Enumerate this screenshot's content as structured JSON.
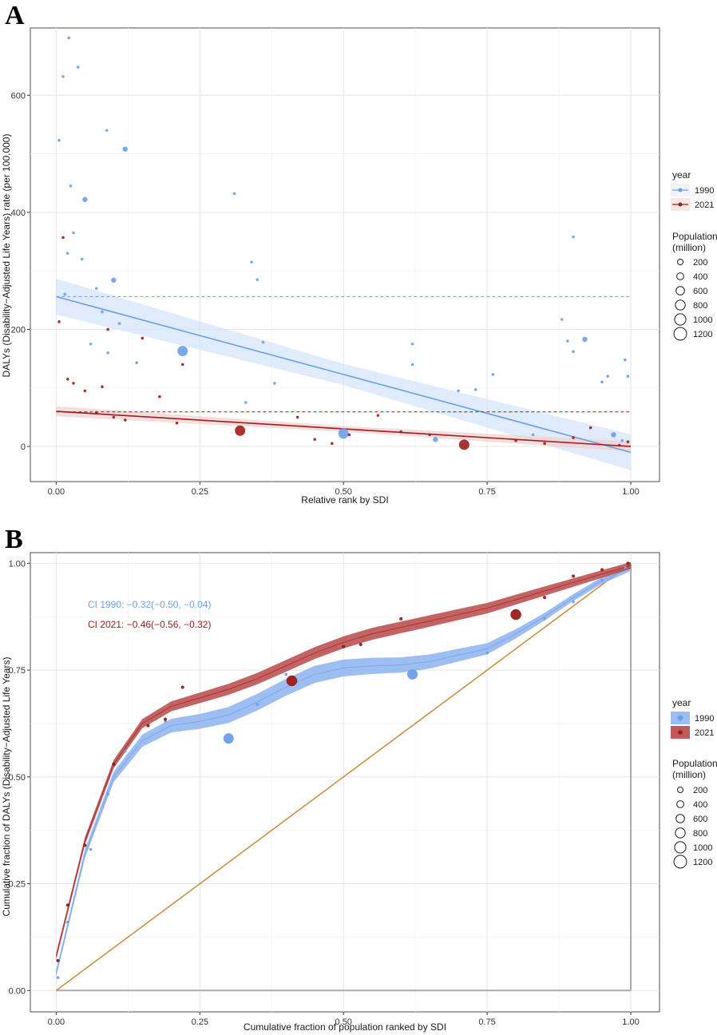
{
  "colors": {
    "c1990": "#6C9FE8",
    "c2021": "#A01C1C",
    "equality": "#C98A3A",
    "grid": "#E5E5E5",
    "frame": "#4D4D4D"
  },
  "chart_data": [
    {
      "panel": "A",
      "type": "scatter",
      "xlabel": "Relative rank by SDI",
      "ylabel": "DALYs (Disability−Adjusted Life Years) rate (per 100,000)",
      "xlim": [
        -0.045,
        1.05
      ],
      "ylim": [
        -60,
        715
      ],
      "xticks": [
        0,
        0.25,
        0.5,
        0.75,
        1.0
      ],
      "xtick_labels": [
        "0.00",
        "0.25",
        "0.50",
        "0.75",
        "1.00"
      ],
      "yticks": [
        0,
        200,
        400,
        600
      ],
      "ytick_labels": [
        "0",
        "200",
        "400",
        "600"
      ],
      "legend": {
        "year_title": "year",
        "years": [
          "1990",
          "2021"
        ],
        "size_title_1": "Population",
        "size_title_2": "(million)",
        "sizes": [
          "200",
          "400",
          "600",
          "800",
          "1000",
          "1200"
        ]
      },
      "series": [
        {
          "name": "1990",
          "regression": {
            "x": [
              0,
              1
            ],
            "y": [
              256,
              -10
            ]
          },
          "mean_line": 256,
          "points": [
            [
              0.005,
              523,
              1
            ],
            [
              0.012,
              632,
              1
            ],
            [
              0.022,
              698,
              1
            ],
            [
              0.038,
              648,
              1
            ],
            [
              0.05,
              422,
              2
            ],
            [
              0.088,
              540,
              1
            ],
            [
              0.12,
              508,
              2
            ],
            [
              0.025,
              445,
              1
            ],
            [
              0.03,
              365,
              1
            ],
            [
              0.02,
              330,
              1
            ],
            [
              0.045,
              320,
              1
            ],
            [
              0.07,
              270,
              1
            ],
            [
              0.1,
              284,
              2
            ],
            [
              0.08,
              230,
              1
            ],
            [
              0.09,
              160,
              1
            ],
            [
              0.14,
              143,
              1
            ],
            [
              0.22,
              163,
              3
            ],
            [
              0.31,
              432,
              1
            ],
            [
              0.34,
              315,
              1
            ],
            [
              0.35,
              285,
              1
            ],
            [
              0.36,
              178,
              1
            ],
            [
              0.38,
              108,
              1
            ],
            [
              0.33,
              75,
              1
            ],
            [
              0.5,
              22,
              3
            ],
            [
              0.62,
              175,
              1
            ],
            [
              0.62,
              140,
              1
            ],
            [
              0.7,
              95,
              1
            ],
            [
              0.73,
              97,
              1
            ],
            [
              0.76,
              123,
              1
            ],
            [
              0.66,
              12,
              2
            ],
            [
              0.83,
              20,
              1
            ],
            [
              0.88,
              217,
              1
            ],
            [
              0.89,
              180,
              1
            ],
            [
              0.9,
              162,
              1
            ],
            [
              0.92,
              183,
              2
            ],
            [
              0.9,
              358,
              1
            ],
            [
              0.96,
              120,
              1
            ],
            [
              0.995,
              120,
              1
            ],
            [
              0.99,
              148,
              1
            ],
            [
              0.97,
              20,
              2
            ],
            [
              0.985,
              10,
              1
            ],
            [
              0.95,
              110,
              1
            ],
            [
              0.06,
              175,
              1
            ],
            [
              0.11,
              210,
              1
            ],
            [
              0.015,
              260,
              1
            ]
          ]
        },
        {
          "name": "2021",
          "regression": {
            "x": [
              0,
              1
            ],
            "y": [
              60,
              0
            ]
          },
          "mean_line": 59,
          "points": [
            [
              0.005,
              213,
              1
            ],
            [
              0.012,
              357,
              1
            ],
            [
              0.03,
              108,
              1
            ],
            [
              0.05,
              95,
              1
            ],
            [
              0.08,
              102,
              1
            ],
            [
              0.09,
              200,
              1
            ],
            [
              0.1,
              50,
              1
            ],
            [
              0.12,
              45,
              1
            ],
            [
              0.15,
              185,
              1
            ],
            [
              0.18,
              85,
              1
            ],
            [
              0.21,
              40,
              1
            ],
            [
              0.22,
              140,
              1
            ],
            [
              0.32,
              27,
              3
            ],
            [
              0.42,
              50,
              1
            ],
            [
              0.45,
              12,
              1
            ],
            [
              0.48,
              5,
              1
            ],
            [
              0.51,
              20,
              1
            ],
            [
              0.56,
              53,
              1
            ],
            [
              0.6,
              25,
              1
            ],
            [
              0.65,
              20,
              1
            ],
            [
              0.71,
              3,
              3
            ],
            [
              0.8,
              10,
              1
            ],
            [
              0.85,
              5,
              1
            ],
            [
              0.9,
              15,
              1
            ],
            [
              0.93,
              32,
              1
            ],
            [
              0.98,
              2,
              1
            ],
            [
              0.995,
              8,
              1
            ],
            [
              0.02,
              115,
              1
            ],
            [
              0.07,
              58,
              1
            ]
          ]
        }
      ]
    },
    {
      "panel": "B",
      "type": "line",
      "xlabel": "Cumulative fraction of population ranked by SDI",
      "ylabel": "Cumulative fraction of DALYs (Disability−Adjusted Life Years)",
      "xlim": [
        -0.045,
        1.05
      ],
      "ylim": [
        -0.05,
        1.025
      ],
      "xticks": [
        0,
        0.25,
        0.5,
        0.75,
        1.0
      ],
      "xtick_labels": [
        "0.00",
        "0.25",
        "0.50",
        "0.75",
        "1.00"
      ],
      "yticks": [
        0,
        0.25,
        0.5,
        0.75,
        1.0
      ],
      "ytick_labels": [
        "0.00",
        "0.25",
        "0.50",
        "0.75",
        "1.00"
      ],
      "annotations": [
        "CI 1990:  −0.32(−0.50, −0.04)",
        "CI 2021:  −0.46(−0.56, −0.32)"
      ],
      "legend": {
        "year_title": "year",
        "years": [
          "1990",
          "2021"
        ],
        "size_title_1": "Population",
        "size_title_2": "(million)",
        "sizes": [
          "200",
          "400",
          "600",
          "800",
          "1000",
          "1200"
        ]
      },
      "series": [
        {
          "name": "1990",
          "curve": {
            "x": [
              0,
              0.05,
              0.1,
              0.15,
              0.2,
              0.25,
              0.3,
              0.35,
              0.4,
              0.45,
              0.5,
              0.55,
              0.6,
              0.65,
              0.7,
              0.75,
              0.8,
              0.85,
              0.9,
              0.95,
              1.0
            ],
            "y": [
              0.04,
              0.32,
              0.5,
              0.585,
              0.62,
              0.63,
              0.645,
              0.675,
              0.71,
              0.74,
              0.755,
              0.76,
              0.762,
              0.77,
              0.785,
              0.8,
              0.835,
              0.875,
              0.92,
              0.96,
              0.99
            ]
          },
          "points": [
            [
              0.003,
              0.03,
              1
            ],
            [
              0.02,
              0.16,
              1
            ],
            [
              0.06,
              0.33,
              1
            ],
            [
              0.09,
              0.46,
              1
            ],
            [
              0.12,
              0.56,
              1
            ],
            [
              0.19,
              0.63,
              1
            ],
            [
              0.3,
              0.59,
              3
            ],
            [
              0.35,
              0.67,
              1
            ],
            [
              0.4,
              0.74,
              1
            ],
            [
              0.62,
              0.74,
              3
            ],
            [
              0.75,
              0.79,
              1
            ],
            [
              0.85,
              0.87,
              1
            ],
            [
              0.9,
              0.91,
              1
            ],
            [
              0.95,
              0.96,
              1
            ],
            [
              0.99,
              0.99,
              1
            ]
          ]
        },
        {
          "name": "2021",
          "curve": {
            "x": [
              0,
              0.05,
              0.1,
              0.15,
              0.2,
              0.25,
              0.3,
              0.35,
              0.4,
              0.45,
              0.5,
              0.55,
              0.6,
              0.65,
              0.7,
              0.75,
              0.8,
              0.85,
              0.9,
              0.95,
              1.0
            ],
            "y": [
              0.08,
              0.35,
              0.53,
              0.625,
              0.665,
              0.685,
              0.705,
              0.73,
              0.76,
              0.79,
              0.815,
              0.835,
              0.85,
              0.865,
              0.88,
              0.895,
              0.915,
              0.935,
              0.955,
              0.975,
              0.995
            ]
          },
          "points": [
            [
              0.003,
              0.07,
              1
            ],
            [
              0.02,
              0.2,
              1
            ],
            [
              0.05,
              0.34,
              1
            ],
            [
              0.1,
              0.53,
              1
            ],
            [
              0.16,
              0.62,
              1
            ],
            [
              0.19,
              0.635,
              1
            ],
            [
              0.22,
              0.71,
              1
            ],
            [
              0.41,
              0.725,
              3
            ],
            [
              0.5,
              0.805,
              1
            ],
            [
              0.53,
              0.81,
              1
            ],
            [
              0.6,
              0.87,
              1
            ],
            [
              0.8,
              0.88,
              3
            ],
            [
              0.85,
              0.92,
              1
            ],
            [
              0.9,
              0.97,
              1
            ],
            [
              0.95,
              0.985,
              1
            ],
            [
              0.995,
              1.0,
              1
            ]
          ]
        }
      ],
      "equality_line": {
        "x": [
          0,
          1
        ],
        "y": [
          0,
          1
        ]
      }
    }
  ]
}
